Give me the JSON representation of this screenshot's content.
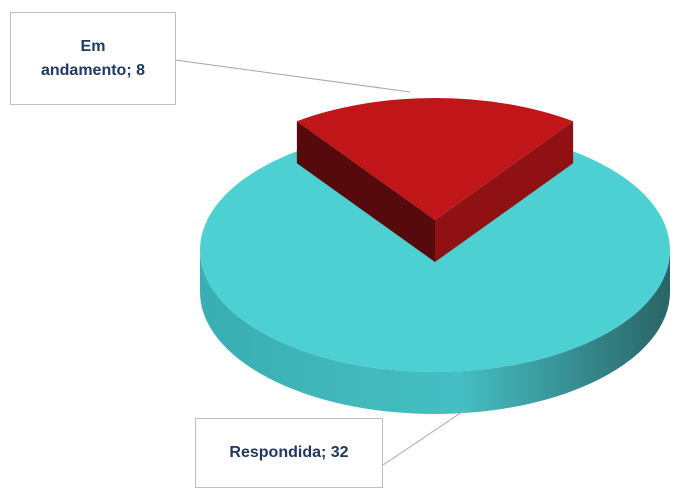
{
  "chart_data": {
    "type": "pie3d",
    "values": [
      8,
      32
    ],
    "value_labels": [
      "Em andamento; 8",
      "Respondida; 32"
    ],
    "colors": [
      "#c0161a",
      "#4cd0d2"
    ],
    "explode": [
      true,
      false
    ]
  }
}
